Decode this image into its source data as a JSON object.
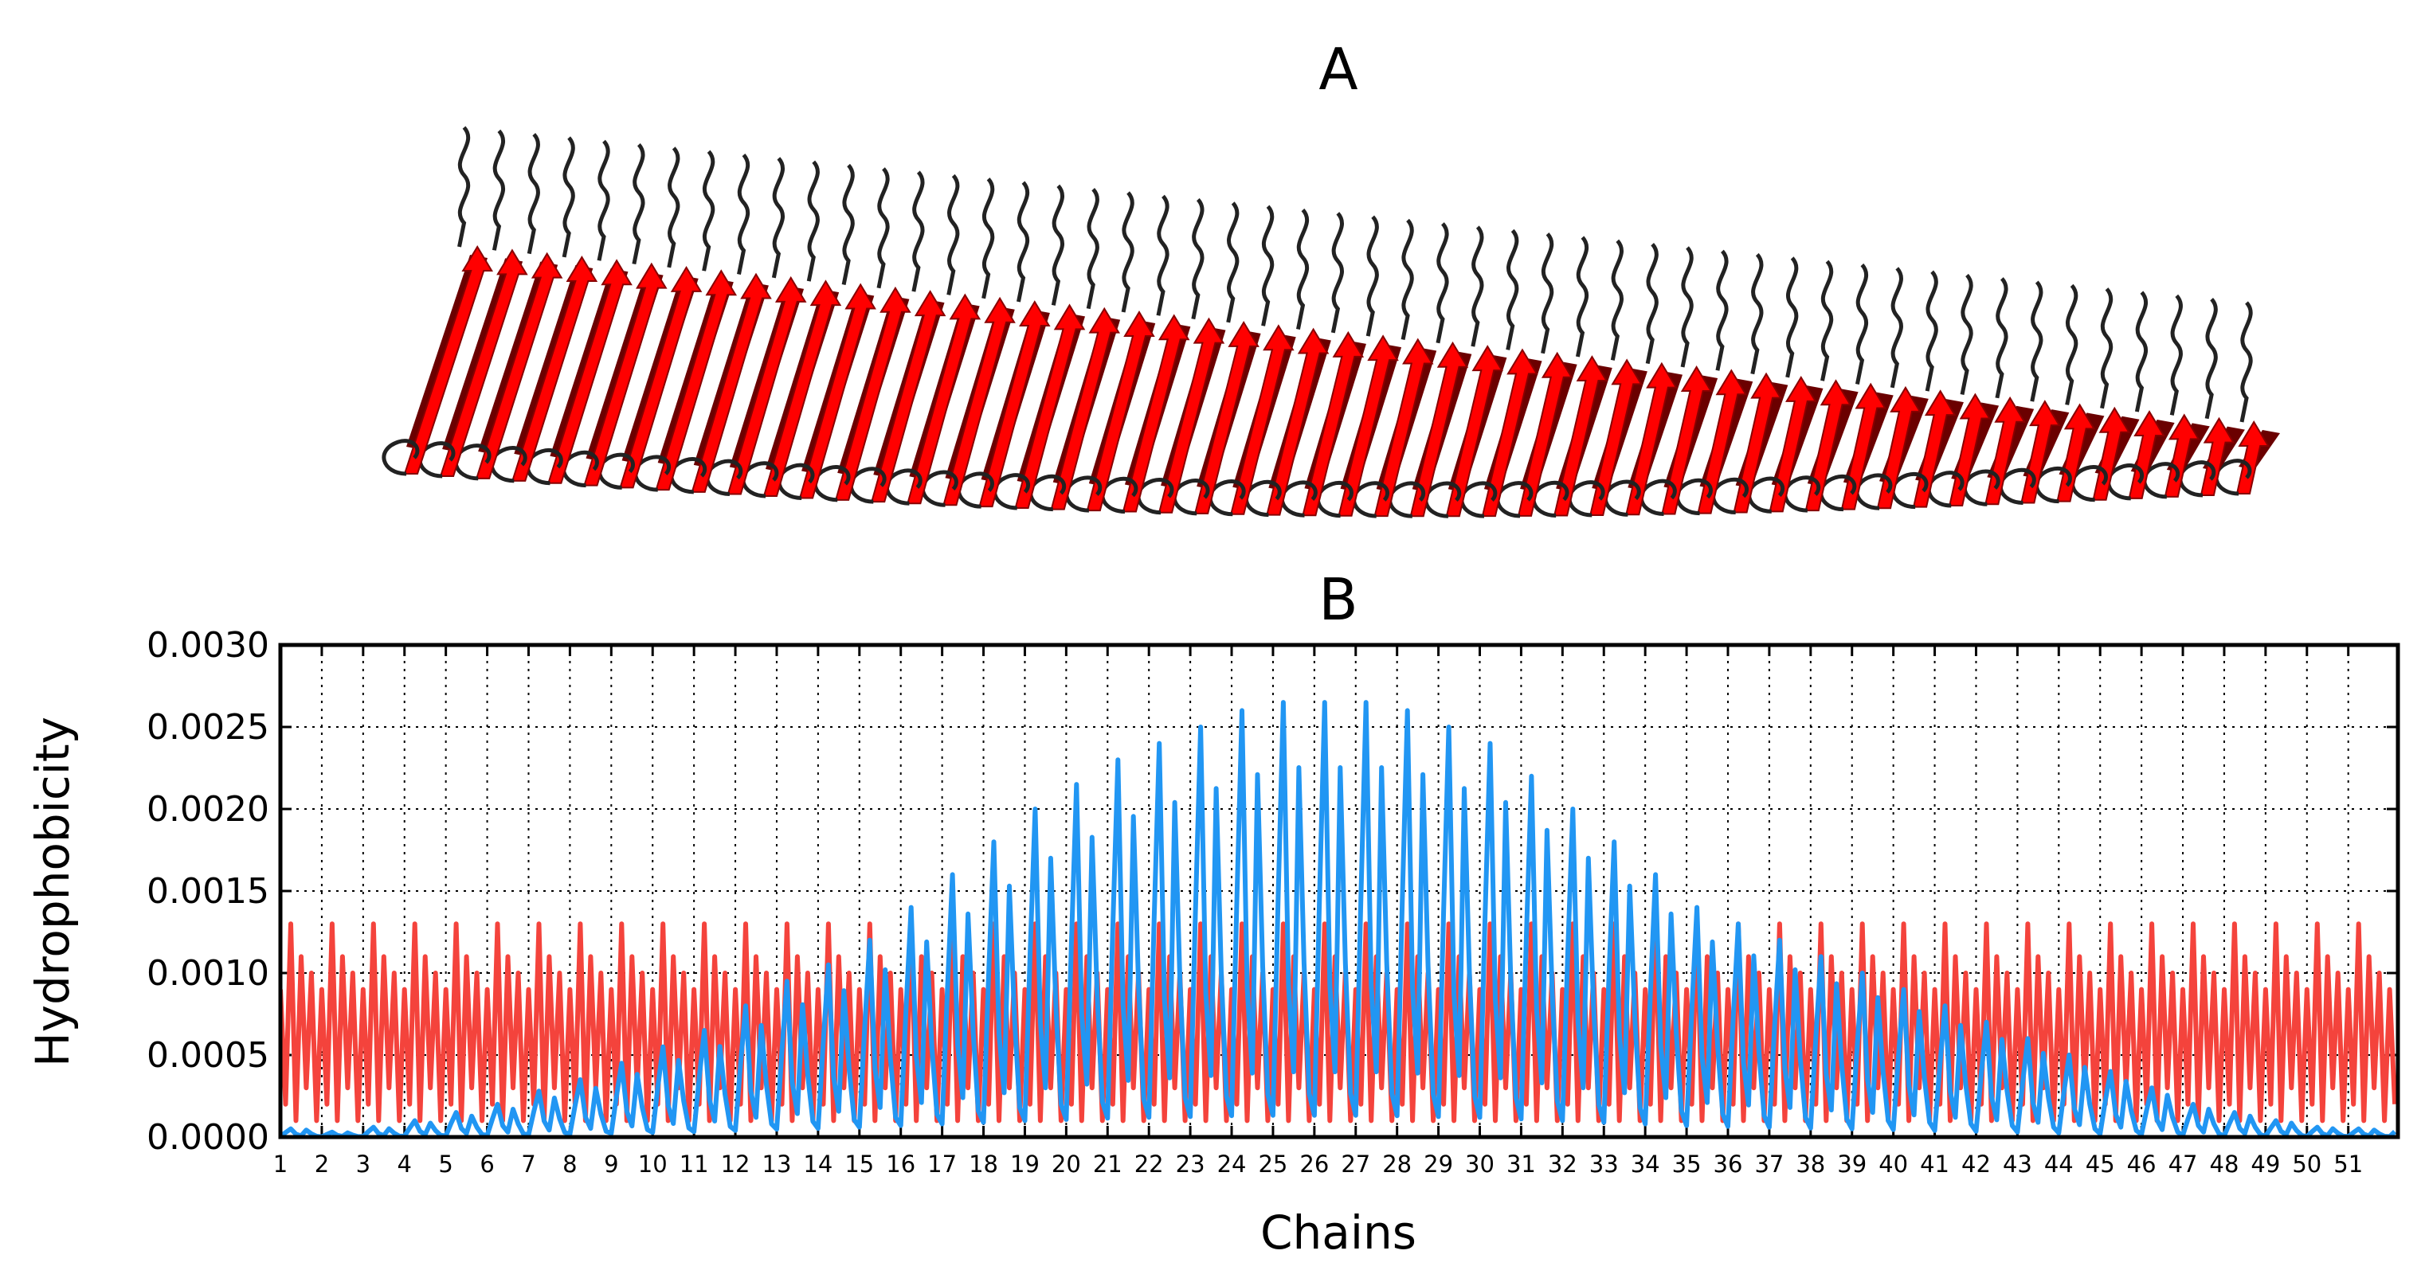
{
  "panels": {
    "a_title": "A",
    "b_title": "B"
  },
  "structure": {
    "chain_count": 52,
    "strand_color": "#ff0000",
    "strand_shadow_color": "#6b0000",
    "loop_color": "#222222"
  },
  "chart_data": {
    "type": "line",
    "title": "B",
    "xlabel": "Chains",
    "ylabel": "Hydrophobicity",
    "xlim": [
      1,
      52.2
    ],
    "ylim": [
      0,
      0.003
    ],
    "ytick_labels": [
      "0.0000",
      "0.0005",
      "0.0010",
      "0.0015",
      "0.0020",
      "0.0025",
      "0.0030"
    ],
    "ytick_values": [
      0,
      0.0005,
      0.001,
      0.0015,
      0.002,
      0.0025,
      0.003
    ],
    "xtick_labels": [
      "1",
      "2",
      "3",
      "4",
      "5",
      "6",
      "7",
      "8",
      "9",
      "10",
      "11",
      "12",
      "13",
      "14",
      "15",
      "16",
      "17",
      "18",
      "19",
      "20",
      "21",
      "22",
      "23",
      "24",
      "25",
      "26",
      "27",
      "28",
      "29",
      "30",
      "31",
      "32",
      "33",
      "34",
      "35",
      "36",
      "37",
      "38",
      "39",
      "40",
      "41",
      "42",
      "43",
      "44",
      "45",
      "46",
      "47",
      "48",
      "49",
      "50",
      "51"
    ],
    "grid": true,
    "series": [
      {
        "name": "red-series",
        "color": "#f4433c",
        "pattern_per_chain": [
          0.0009,
          0.0002,
          0.0013,
          0.0001,
          0.0011,
          0.0003,
          0.001,
          0.0001
        ],
        "description": "periodic, constant amplitude across all chains (0 to ~0.0013)"
      },
      {
        "name": "blue-series",
        "color": "#2196f3",
        "peaks_per_chain": [
          5e-05,
          3e-05,
          6e-05,
          0.0001,
          0.00015,
          0.0002,
          0.00028,
          0.00035,
          0.00045,
          0.00055,
          0.00065,
          0.0008,
          0.00095,
          0.00105,
          0.0012,
          0.0014,
          0.0016,
          0.0018,
          0.002,
          0.00215,
          0.0023,
          0.0024,
          0.0025,
          0.0026,
          0.00265,
          0.00265,
          0.00265,
          0.0026,
          0.0025,
          0.0024,
          0.0022,
          0.002,
          0.0018,
          0.0016,
          0.0014,
          0.0013,
          0.0012,
          0.0011,
          0.001,
          0.0009,
          0.0008,
          0.0007,
          0.0006,
          0.0005,
          0.0004,
          0.0003,
          0.0002,
          0.00015,
          0.0001,
          6e-05,
          5e-05,
          6e-05
        ],
        "description": "bell-shaped oscillation, maximum ~0.00265 near chains 25-27"
      }
    ]
  }
}
